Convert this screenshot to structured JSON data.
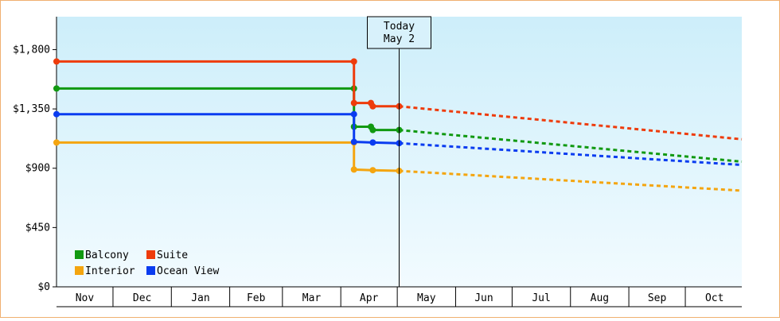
{
  "chart_data": {
    "type": "line",
    "title": "",
    "xlabel": "",
    "ylabel": "",
    "ylim": [
      0,
      2050
    ],
    "yticks": [
      {
        "value": 0,
        "label": "$0"
      },
      {
        "value": 450,
        "label": "$450"
      },
      {
        "value": 900,
        "label": "$900"
      },
      {
        "value": 1350,
        "label": "$1,350"
      },
      {
        "value": 1800,
        "label": "$1,800"
      }
    ],
    "x_categories": [
      "Nov",
      "Dec",
      "Jan",
      "Feb",
      "Mar",
      "Apr",
      "May",
      "Jun",
      "Jul",
      "Aug",
      "Sep",
      "Oct"
    ],
    "today_marker": {
      "line1": "Today",
      "line2": "May 2"
    },
    "today_date": "May 2",
    "x_start": "Nov 1",
    "x_end": "Oct 31",
    "legend_position": "bottom-left",
    "background": {
      "top": "#cdeefa",
      "bottom": "#f2fbff"
    },
    "series": [
      {
        "name": "Balcony",
        "color": "#119911",
        "history": [
          [
            "Nov 1",
            1505
          ],
          [
            "Apr 8",
            1505
          ],
          [
            "Apr 8",
            1215
          ],
          [
            "Apr 17",
            1215
          ],
          [
            "Apr 18",
            1190
          ],
          [
            "May 2",
            1190
          ]
        ],
        "markers": [
          [
            "Nov 1",
            1505
          ],
          [
            "Apr 8",
            1505
          ],
          [
            "Apr 8",
            1215
          ],
          [
            "Apr 17",
            1215
          ],
          [
            "Apr 18",
            1190
          ],
          [
            "May 2",
            1190
          ]
        ],
        "projection": [
          [
            "May 2",
            1190
          ],
          [
            "Oct 31",
            950
          ]
        ]
      },
      {
        "name": "Suite",
        "color": "#ee3b0b",
        "history": [
          [
            "Nov 1",
            1710
          ],
          [
            "Apr 8",
            1710
          ],
          [
            "Apr 8",
            1395
          ],
          [
            "Apr 17",
            1395
          ],
          [
            "Apr 18",
            1370
          ],
          [
            "May 2",
            1370
          ]
        ],
        "markers": [
          [
            "Nov 1",
            1710
          ],
          [
            "Apr 8",
            1710
          ],
          [
            "Apr 8",
            1395
          ],
          [
            "Apr 17",
            1395
          ],
          [
            "Apr 18",
            1370
          ],
          [
            "May 2",
            1370
          ]
        ],
        "projection": [
          [
            "May 2",
            1370
          ],
          [
            "Oct 31",
            1120
          ]
        ]
      },
      {
        "name": "Interior",
        "color": "#f4a510",
        "history": [
          [
            "Nov 1",
            1095
          ],
          [
            "Apr 8",
            1095
          ],
          [
            "Apr 8",
            890
          ],
          [
            "Apr 18",
            885
          ],
          [
            "May 2",
            880
          ]
        ],
        "markers": [
          [
            "Nov 1",
            1095
          ],
          [
            "Apr 8",
            1095
          ],
          [
            "Apr 8",
            890
          ],
          [
            "Apr 18",
            885
          ],
          [
            "May 2",
            880
          ]
        ],
        "projection": [
          [
            "May 2",
            880
          ],
          [
            "Oct 31",
            730
          ]
        ]
      },
      {
        "name": "Ocean View",
        "color": "#0a3cf0",
        "history": [
          [
            "Nov 1",
            1310
          ],
          [
            "Apr 8",
            1310
          ],
          [
            "Apr 8",
            1100
          ],
          [
            "Apr 18",
            1095
          ],
          [
            "May 2",
            1090
          ]
        ],
        "markers": [
          [
            "Nov 1",
            1310
          ],
          [
            "Apr 8",
            1310
          ],
          [
            "Apr 8",
            1100
          ],
          [
            "Apr 18",
            1095
          ],
          [
            "May 2",
            1090
          ]
        ],
        "projection": [
          [
            "May 2",
            1090
          ],
          [
            "Oct 31",
            925
          ]
        ]
      }
    ]
  }
}
